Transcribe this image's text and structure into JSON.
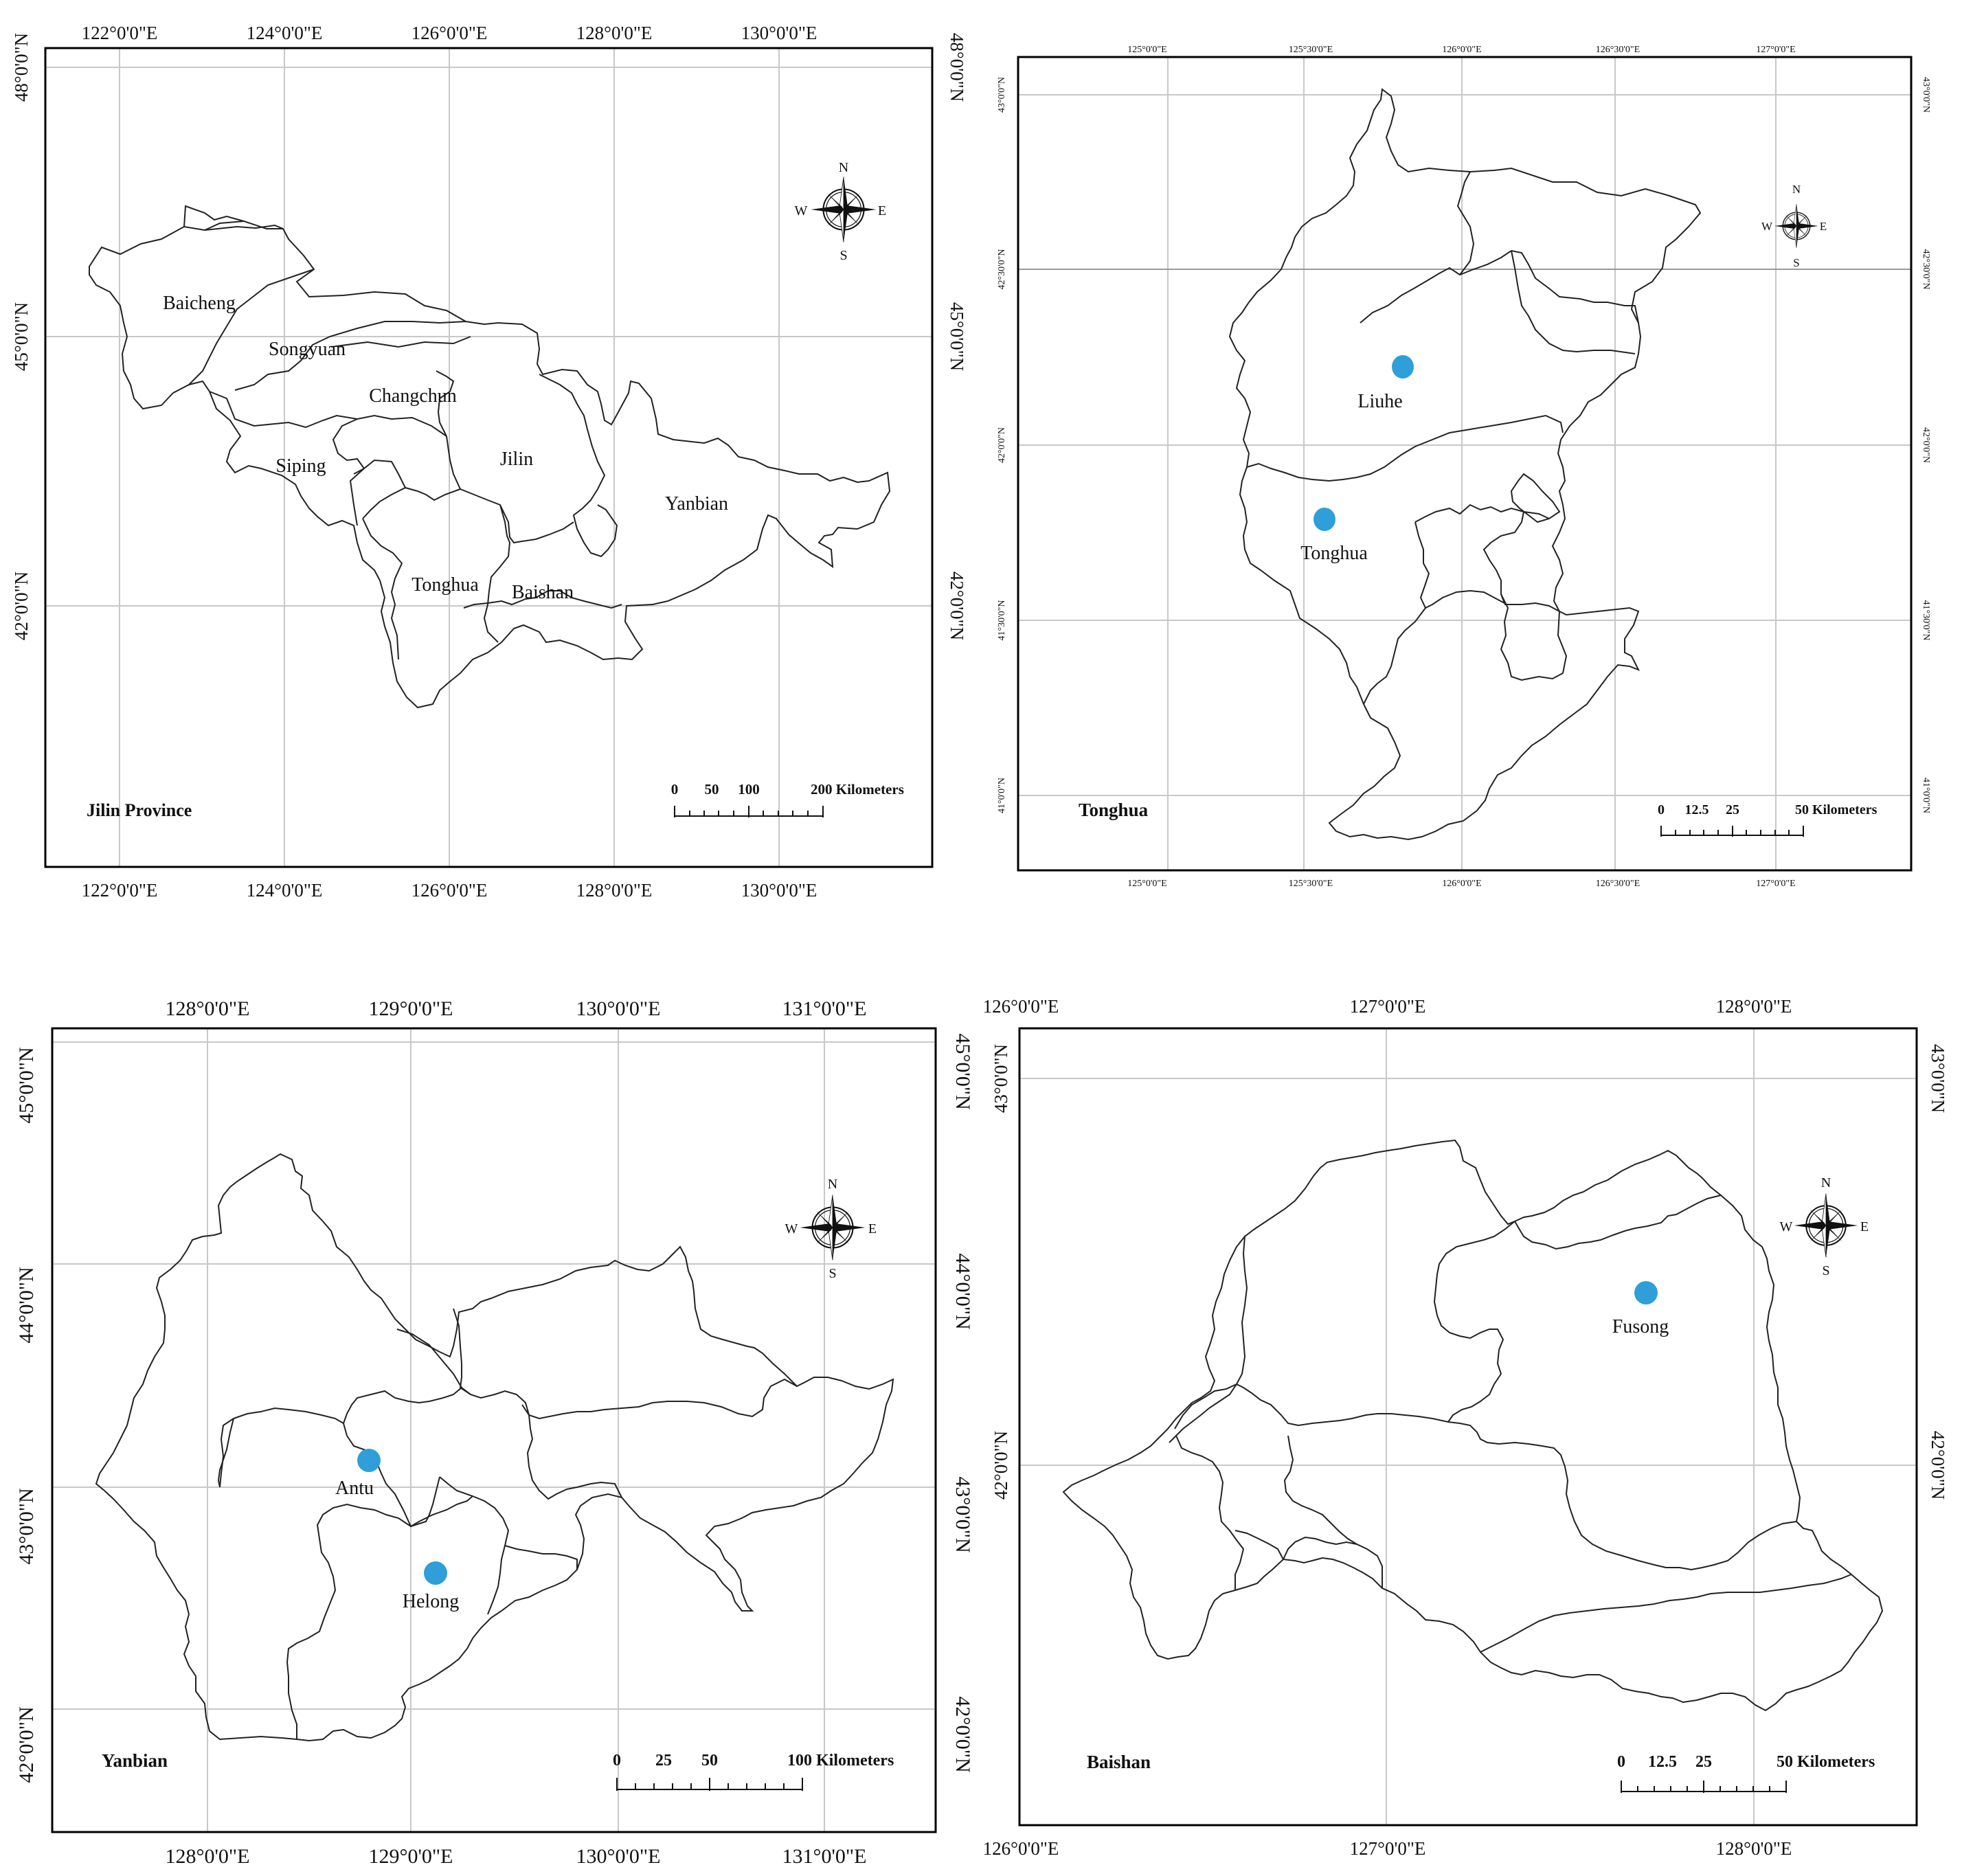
{
  "panels": [
    {
      "id": "jilin",
      "title": "Jilin Province",
      "lon_labels": [
        "122°0'0\"E",
        "124°0'0\"E",
        "126°0'0\"E",
        "128°0'0\"E",
        "130°0'0\"E"
      ],
      "lat_labels": [
        "48°0'0\"N",
        "45°0'0\"N",
        "42°0'0\"N"
      ],
      "regions": [
        "Baicheng",
        "Songyuan",
        "Changchun",
        "Siping",
        "Jilin",
        "Yanbian",
        "Tonghua",
        "Baishan"
      ],
      "sites": [],
      "scale": {
        "ticks": [
          "0",
          "50",
          "100",
          "200 Kilometers"
        ]
      },
      "compass": {
        "n": "N",
        "s": "S",
        "e": "E",
        "w": "W"
      }
    },
    {
      "id": "tonghua",
      "title": "Tonghua",
      "lon_labels": [
        "125°0'0\"E",
        "125°30'0\"E",
        "126°0'0\"E",
        "126°30'0\"E",
        "127°0'0\"E"
      ],
      "lat_labels": [
        "43°0'0\"N",
        "42°30'0\"N",
        "42°0'0\"N",
        "41°30'0\"N",
        "41°0'0\"N"
      ],
      "regions": [],
      "sites": [
        "Liuhe",
        "Tonghua"
      ],
      "scale": {
        "ticks": [
          "0",
          "12.5",
          "25",
          "50 Kilometers"
        ]
      },
      "compass": {
        "n": "N",
        "s": "S",
        "e": "E",
        "w": "W"
      }
    },
    {
      "id": "yanbian",
      "title": "Yanbian",
      "lon_labels": [
        "128°0'0\"E",
        "129°0'0\"E",
        "130°0'0\"E",
        "131°0'0\"E"
      ],
      "lat_labels": [
        "45°0'0\"N",
        "44°0'0\"N",
        "43°0'0\"N",
        "42°0'0\"N"
      ],
      "regions": [],
      "sites": [
        "Antu",
        "Helong"
      ],
      "scale": {
        "ticks": [
          "0",
          "25",
          "50",
          "100 Kilometers"
        ]
      },
      "compass": {
        "n": "N",
        "s": "S",
        "e": "E",
        "w": "W"
      }
    },
    {
      "id": "baishan",
      "title": "Baishan",
      "lon_labels": [
        "126°0'0\"E",
        "127°0'0\"E",
        "128°0'0\"E"
      ],
      "lat_labels": [
        "43°0'0\"N",
        "42°0'0\"N"
      ],
      "regions": [],
      "sites": [
        "Fusong"
      ],
      "scale": {
        "ticks": [
          "0",
          "12.5",
          "25",
          "50 Kilometers"
        ]
      },
      "compass": {
        "n": "N",
        "s": "S",
        "e": "E",
        "w": "W"
      }
    }
  ],
  "colors": {
    "site_marker": "#2e9fd8",
    "boundary": "#222222",
    "graticule": "#c8c8c8",
    "frame": "#000000"
  }
}
